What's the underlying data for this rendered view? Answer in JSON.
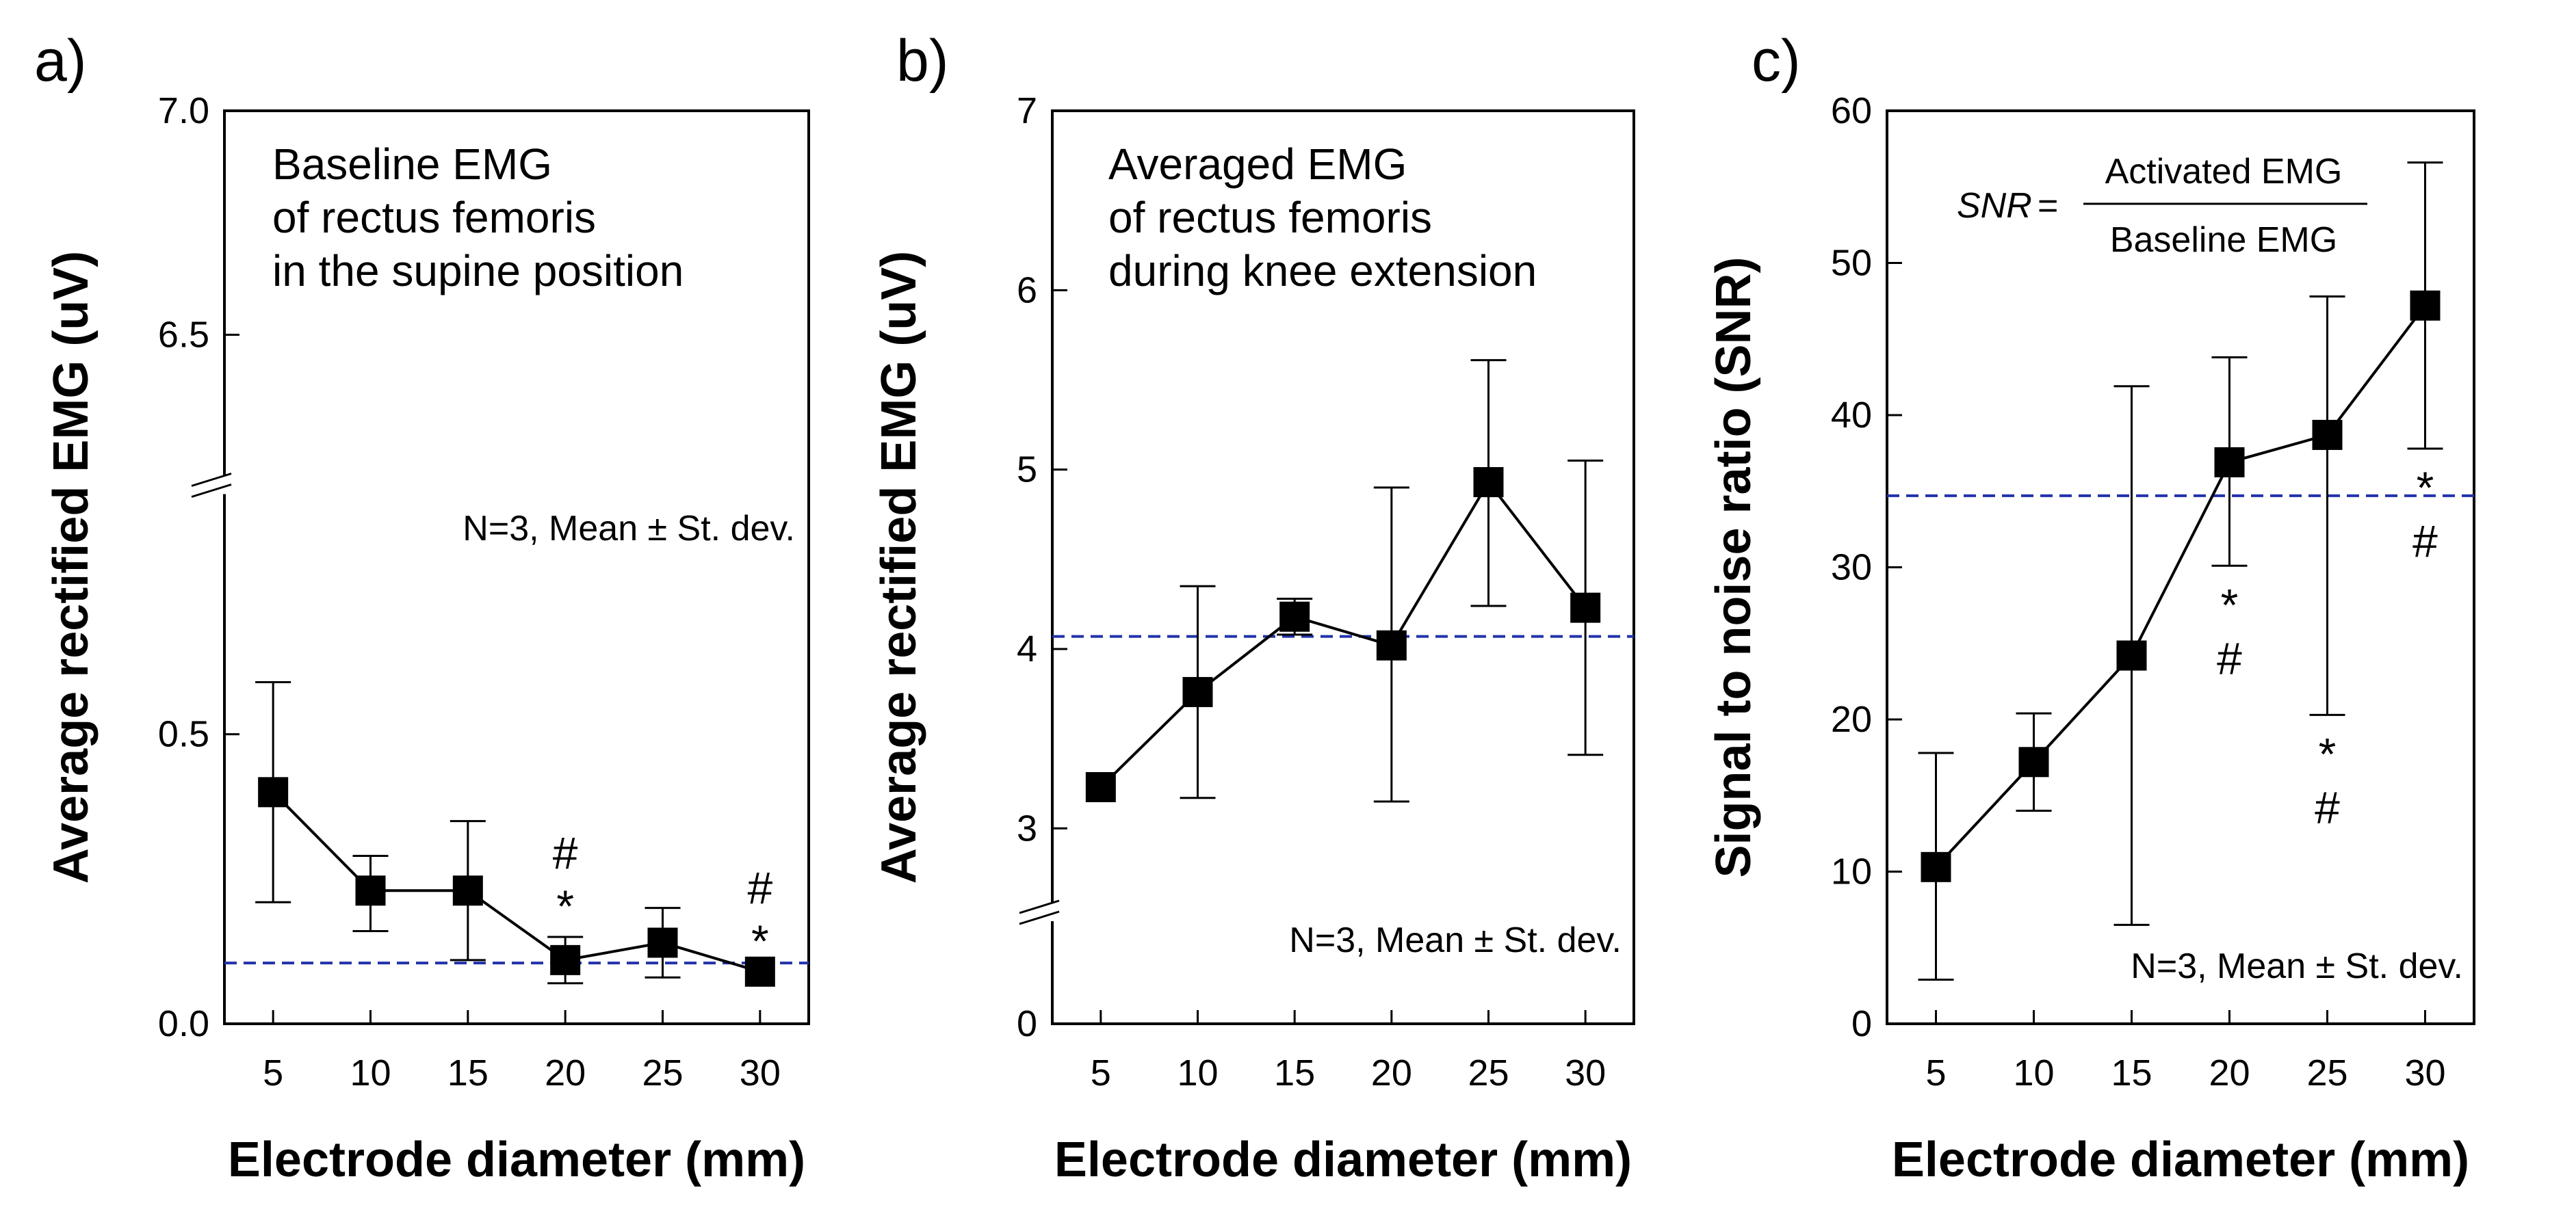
{
  "chart_data": [
    {
      "id": "a",
      "type": "line",
      "panel_label": "a)",
      "title_lines": [
        "Baseline EMG",
        "of rectus femoris",
        "in the supine position"
      ],
      "note": "N=3, Mean ± St. dev.",
      "xlabel": "Electrode diameter (mm)",
      "ylabel": "Average rectified EMG (uV)",
      "categories": [
        "5",
        "10",
        "15",
        "20",
        "25",
        "30"
      ],
      "series": [
        {
          "name": "Baseline EMG",
          "values": [
            0.4,
            0.23,
            0.23,
            0.11,
            0.14,
            0.09
          ],
          "err_high": [
            0.59,
            0.29,
            0.35,
            0.15,
            0.2,
            0.09
          ],
          "err_low": [
            0.21,
            0.16,
            0.11,
            0.07,
            0.08,
            0.09
          ]
        }
      ],
      "ylim": [
        0.0,
        7.0
      ],
      "axis_break": [
        0.75,
        6.4
      ],
      "yticks": [
        {
          "value": 0.0,
          "label": "0.0"
        },
        {
          "value": 0.5,
          "label": "0.5"
        },
        {
          "value": 6.5,
          "label": "6.5"
        },
        {
          "value": 7.0,
          "label": "7.0"
        }
      ],
      "reference_line": 0.105,
      "annotations": [
        {
          "category": "20",
          "lines": [
            "#",
            "*"
          ]
        },
        {
          "category": "30",
          "lines": [
            "#",
            "*"
          ]
        }
      ]
    },
    {
      "id": "b",
      "type": "line",
      "panel_label": "b)",
      "title_lines": [
        "Averaged EMG",
        "of rectus femoris",
        "during knee extension"
      ],
      "note": "N=3, Mean ± St. dev.",
      "xlabel": "Electrode diameter (mm)",
      "ylabel": "Average rectified EMG (uV)",
      "categories": [
        "5",
        "10",
        "15",
        "20",
        "25",
        "30"
      ],
      "series": [
        {
          "name": "Activated EMG",
          "values": [
            3.23,
            3.76,
            4.18,
            4.02,
            4.93,
            4.23
          ],
          "err_high": [
            3.23,
            4.35,
            4.28,
            4.9,
            5.61,
            5.05
          ],
          "err_low": [
            3.23,
            3.17,
            4.08,
            3.15,
            4.24,
            3.41
          ]
        }
      ],
      "ylim": [
        0,
        7
      ],
      "axis_break": [
        0.5,
        2.7
      ],
      "yticks": [
        {
          "value": 0,
          "label": "0"
        },
        {
          "value": 3,
          "label": "3"
        },
        {
          "value": 4,
          "label": "4"
        },
        {
          "value": 5,
          "label": "5"
        },
        {
          "value": 6,
          "label": "6"
        },
        {
          "value": 7,
          "label": "7"
        }
      ],
      "reference_line": 4.07,
      "annotations": []
    },
    {
      "id": "c",
      "type": "line",
      "panel_label": "c)",
      "formula": {
        "lhs": "SNR",
        "numerator": "Activated EMG",
        "denominator": "Baseline EMG"
      },
      "note": "N=3, Mean ± St. dev.",
      "xlabel": "Electrode diameter (mm)",
      "ylabel": "Signal to noise ratio (SNR)",
      "categories": [
        "5",
        "10",
        "15",
        "20",
        "25",
        "30"
      ],
      "series": [
        {
          "name": "SNR",
          "values": [
            10.3,
            17.2,
            24.2,
            36.9,
            38.7,
            47.2
          ],
          "err_high": [
            17.8,
            20.4,
            41.9,
            43.8,
            47.8,
            56.6
          ],
          "err_low": [
            2.9,
            14.0,
            6.5,
            30.1,
            20.3,
            37.8
          ]
        }
      ],
      "ylim": [
        0,
        60
      ],
      "axis_break": null,
      "yticks": [
        {
          "value": 0,
          "label": "0"
        },
        {
          "value": 10,
          "label": "10"
        },
        {
          "value": 20,
          "label": "20"
        },
        {
          "value": 30,
          "label": "30"
        },
        {
          "value": 40,
          "label": "40"
        },
        {
          "value": 50,
          "label": "50"
        },
        {
          "value": 60,
          "label": "60"
        }
      ],
      "reference_line": 34.7,
      "annotations": [
        {
          "category": "20",
          "lines": [
            "*",
            "#"
          ]
        },
        {
          "category": "25",
          "lines": [
            "*",
            "#"
          ]
        },
        {
          "category": "30",
          "lines": [
            "*",
            "#"
          ]
        }
      ]
    }
  ]
}
